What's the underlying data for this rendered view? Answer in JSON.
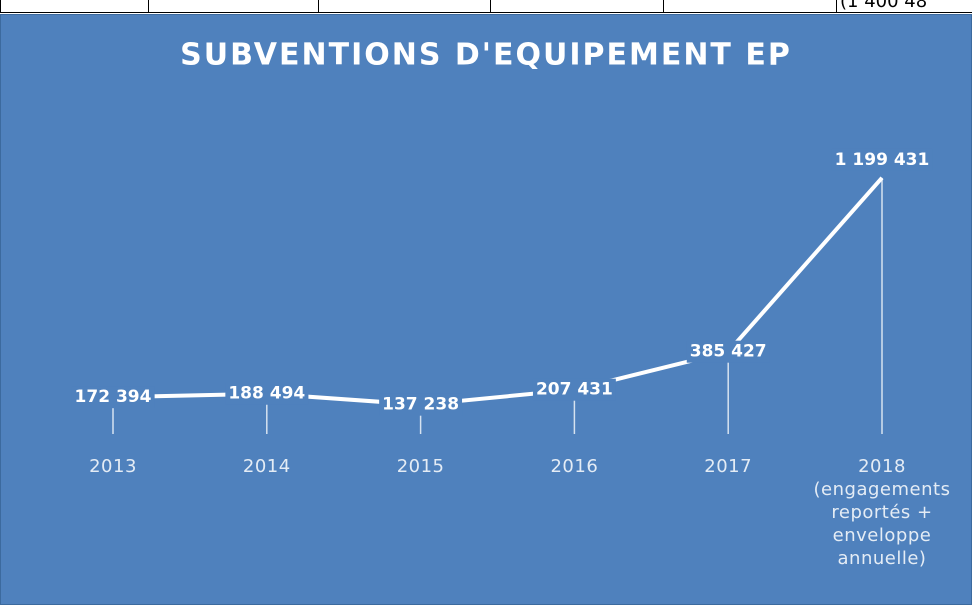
{
  "header_fragment": "(1 400 48",
  "chart_data": {
    "type": "line",
    "title": "SUBVENTIONS D'EQUIPEMENT EP",
    "categories": [
      "2013",
      "2014",
      "2015",
      "2016",
      "2017",
      "2018 (engagements reportés + enveloppe annuelle)"
    ],
    "values": [
      172394,
      188494,
      137238,
      207431,
      385427,
      1199431
    ],
    "value_labels": [
      "172 394",
      "188 494",
      "137 238",
      "207 431",
      "385 427",
      "1 199 431"
    ],
    "color": "#ffffff",
    "ylim": [
      0,
      1400000
    ]
  }
}
